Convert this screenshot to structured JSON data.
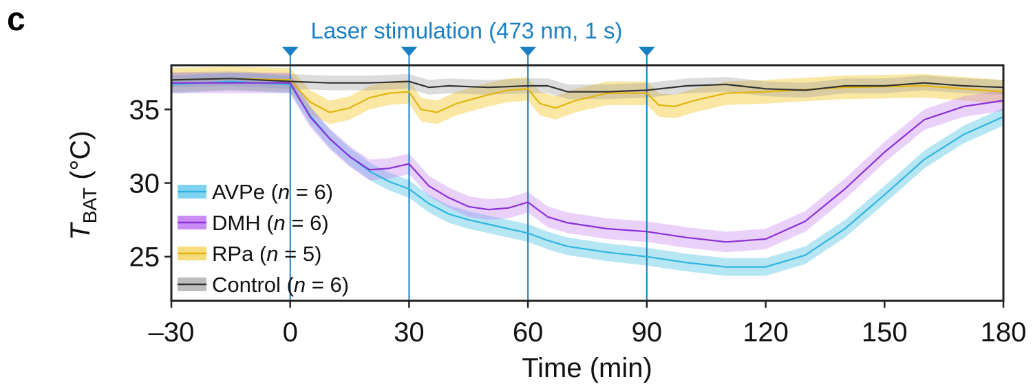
{
  "panel_label": "c",
  "colors": {
    "stim": "#1a7fc4",
    "AVPe": "#2fb4e0",
    "DMH": "#8b2fd8",
    "RPa": "#f0c419",
    "Control": "#555555"
  },
  "chart_data": {
    "type": "line",
    "title": "",
    "xlabel": "Time (min)",
    "ylabel_main": "T",
    "ylabel_sub": "BAT",
    "ylabel_unit": " (°C)",
    "xlim": [
      -30,
      180
    ],
    "ylim": [
      22,
      38
    ],
    "xticks": [
      -30,
      0,
      30,
      60,
      90,
      120,
      150,
      180
    ],
    "xtick_labels": [
      "–30",
      "0",
      "30",
      "60",
      "90",
      "120",
      "150",
      "180"
    ],
    "yticks": [
      25,
      30,
      35
    ],
    "ytick_labels": [
      "25",
      "30",
      "35"
    ],
    "grid": false,
    "legend_placement": "bottom-left",
    "annotation": {
      "text": "Laser stimulation (473 nm, 1 s)",
      "stim_times": [
        0,
        30,
        60,
        90
      ]
    },
    "series": [
      {
        "key": "AVPe",
        "legend_label": "AVPe (",
        "legend_italic": "n",
        "legend_rest": " = 6)",
        "x": [
          -30,
          -15,
          0,
          5,
          10,
          15,
          20,
          25,
          30,
          35,
          40,
          45,
          50,
          55,
          60,
          65,
          70,
          80,
          90,
          100,
          110,
          120,
          130,
          140,
          150,
          160,
          170,
          180
        ],
        "y": [
          36.7,
          36.9,
          36.7,
          34.6,
          33.0,
          31.8,
          30.8,
          30.1,
          29.6,
          28.6,
          27.9,
          27.5,
          27.2,
          26.9,
          26.6,
          26.1,
          25.7,
          25.3,
          25.0,
          24.6,
          24.3,
          24.3,
          25.1,
          26.9,
          29.2,
          31.6,
          33.3,
          34.5
        ],
        "band": 0.6
      },
      {
        "key": "DMH",
        "legend_label": "DMH (",
        "legend_italic": "n",
        "legend_rest": " = 6)",
        "x": [
          -30,
          -15,
          0,
          5,
          10,
          15,
          20,
          25,
          30,
          35,
          40,
          45,
          50,
          55,
          60,
          65,
          70,
          80,
          90,
          100,
          110,
          120,
          130,
          140,
          150,
          160,
          170,
          180
        ],
        "y": [
          36.8,
          36.8,
          36.8,
          34.5,
          33.0,
          31.8,
          30.9,
          31.0,
          31.3,
          29.8,
          29.0,
          28.4,
          28.2,
          28.3,
          28.7,
          27.7,
          27.3,
          26.9,
          26.7,
          26.3,
          26.0,
          26.2,
          27.4,
          29.6,
          32.1,
          34.3,
          35.2,
          35.6
        ],
        "band": 0.7
      },
      {
        "key": "RPa",
        "legend_label": "RPa (",
        "legend_italic": "n",
        "legend_rest": " = 5)",
        "x": [
          -30,
          -15,
          0,
          5,
          10,
          15,
          20,
          25,
          30,
          33,
          37,
          42,
          50,
          55,
          60,
          63,
          67,
          72,
          80,
          90,
          93,
          97,
          102,
          110,
          120,
          140,
          160,
          180
        ],
        "y": [
          37.0,
          37.1,
          37.0,
          35.5,
          34.8,
          35.1,
          35.8,
          36.1,
          36.2,
          35.0,
          34.8,
          35.4,
          36.0,
          36.3,
          36.4,
          35.4,
          35.1,
          35.6,
          36.1,
          36.1,
          35.3,
          35.2,
          35.6,
          36.1,
          36.2,
          36.5,
          36.6,
          36.2
        ],
        "band": 0.8
      },
      {
        "key": "Control",
        "legend_label": "Control (",
        "legend_italic": "n",
        "legend_rest": " = 6)",
        "x": [
          -30,
          -15,
          0,
          10,
          20,
          30,
          35,
          40,
          50,
          60,
          65,
          70,
          80,
          90,
          100,
          110,
          120,
          130,
          140,
          150,
          160,
          170,
          180
        ],
        "y": [
          37.0,
          37.1,
          36.9,
          36.8,
          36.8,
          36.9,
          36.5,
          36.6,
          36.5,
          36.6,
          36.6,
          36.2,
          36.2,
          36.3,
          36.6,
          36.7,
          36.4,
          36.3,
          36.6,
          36.6,
          36.8,
          36.6,
          36.5
        ],
        "band": 0.5
      }
    ]
  }
}
